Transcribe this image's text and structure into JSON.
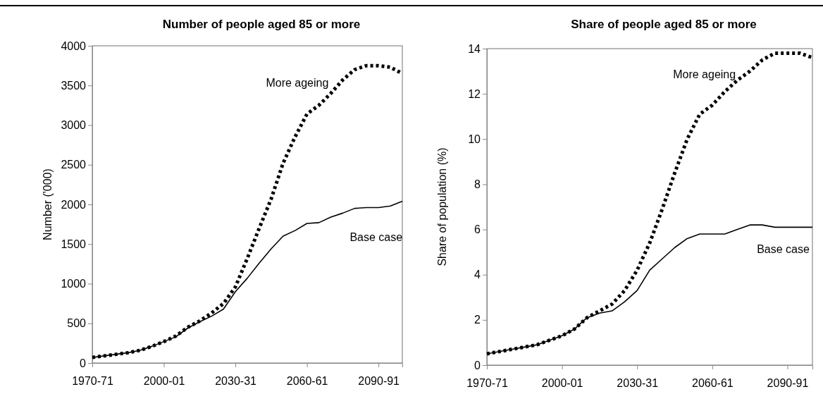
{
  "chart_data": [
    {
      "type": "line",
      "title": "Number of people aged 85 or more",
      "ylabel": "Number ('000)",
      "categories": [
        "1970-71",
        null,
        null,
        null,
        null,
        null,
        "2000-01",
        null,
        null,
        null,
        null,
        null,
        "2030-31",
        null,
        null,
        null,
        null,
        null,
        "2060-61",
        null,
        null,
        null,
        null,
        null,
        "2090-91",
        null,
        null
      ],
      "ylim": [
        0,
        4000
      ],
      "yticks": [
        0,
        500,
        1000,
        1500,
        2000,
        2500,
        3000,
        3500,
        4000
      ],
      "grid": false,
      "series": [
        {
          "name": "More ageing",
          "color": "#000000",
          "line_style": "dotted",
          "values": [
            70,
            90,
            110,
            130,
            160,
            210,
            270,
            340,
            450,
            530,
            630,
            750,
            960,
            1320,
            1700,
            2070,
            2520,
            2850,
            3140,
            3250,
            3400,
            3570,
            3700,
            3750,
            3750,
            3730,
            3650
          ]
        },
        {
          "name": "Base case",
          "color": "#000000",
          "line_style": "solid",
          "values": [
            70,
            90,
            110,
            130,
            160,
            210,
            270,
            330,
            440,
            520,
            590,
            680,
            900,
            1070,
            1260,
            1440,
            1600,
            1670,
            1760,
            1770,
            1840,
            1890,
            1950,
            1960,
            1960,
            1980,
            2040
          ]
        }
      ]
    },
    {
      "type": "line",
      "title": "Share of people aged 85 or more",
      "ylabel": "Share of population (%)",
      "categories": [
        "1970-71",
        null,
        null,
        null,
        null,
        null,
        "2000-01",
        null,
        null,
        null,
        null,
        null,
        "2030-31",
        null,
        null,
        null,
        null,
        null,
        "2060-61",
        null,
        null,
        null,
        null,
        null,
        "2090-91",
        null,
        null
      ],
      "ylim": [
        0,
        14
      ],
      "yticks": [
        0,
        2,
        4,
        6,
        8,
        10,
        12,
        14
      ],
      "grid": false,
      "series": [
        {
          "name": "More ageing",
          "color": "#000000",
          "line_style": "dotted",
          "values": [
            0.5,
            0.6,
            0.7,
            0.8,
            0.9,
            1.1,
            1.3,
            1.6,
            2.1,
            2.4,
            2.7,
            3.3,
            4.2,
            5.4,
            6.9,
            8.5,
            10.0,
            11.1,
            11.5,
            12.1,
            12.6,
            13.0,
            13.5,
            13.8,
            13.8,
            13.8,
            13.6
          ]
        },
        {
          "name": "Base case",
          "color": "#000000",
          "line_style": "solid",
          "values": [
            0.5,
            0.6,
            0.7,
            0.8,
            0.9,
            1.1,
            1.3,
            1.6,
            2.1,
            2.3,
            2.4,
            2.8,
            3.3,
            4.2,
            4.7,
            5.2,
            5.6,
            5.8,
            5.8,
            5.8,
            6.0,
            6.2,
            6.2,
            6.1,
            6.1,
            6.1,
            6.1
          ]
        }
      ]
    }
  ]
}
